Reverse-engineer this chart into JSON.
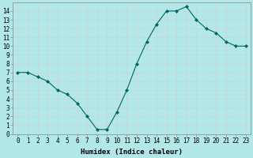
{
  "x": [
    0,
    1,
    2,
    3,
    4,
    5,
    6,
    7,
    8,
    9,
    10,
    11,
    12,
    13,
    14,
    15,
    16,
    17,
    18,
    19,
    20,
    21,
    22,
    23
  ],
  "y": [
    7,
    7,
    6.5,
    6,
    5,
    4.5,
    3.5,
    2,
    0.5,
    0.5,
    2.5,
    5,
    8,
    10.5,
    12.5,
    14,
    14,
    14.5,
    13,
    12,
    11.5,
    10.5,
    10,
    10
  ],
  "xlabel": "Humidex (Indice chaleur)",
  "background_color": "#b2e8e8",
  "grid_color": "#d0d0d0",
  "line_color": "#006666",
  "marker_color": "#006666",
  "ylim": [
    0,
    15
  ],
  "xlim": [
    -0.5,
    23.5
  ],
  "yticks": [
    0,
    1,
    2,
    3,
    4,
    5,
    6,
    7,
    8,
    9,
    10,
    11,
    12,
    13,
    14
  ],
  "xticks": [
    0,
    1,
    2,
    3,
    4,
    5,
    6,
    7,
    8,
    9,
    10,
    11,
    12,
    13,
    14,
    15,
    16,
    17,
    18,
    19,
    20,
    21,
    22,
    23
  ],
  "tick_fontsize": 5.5,
  "xlabel_fontsize": 6.5
}
